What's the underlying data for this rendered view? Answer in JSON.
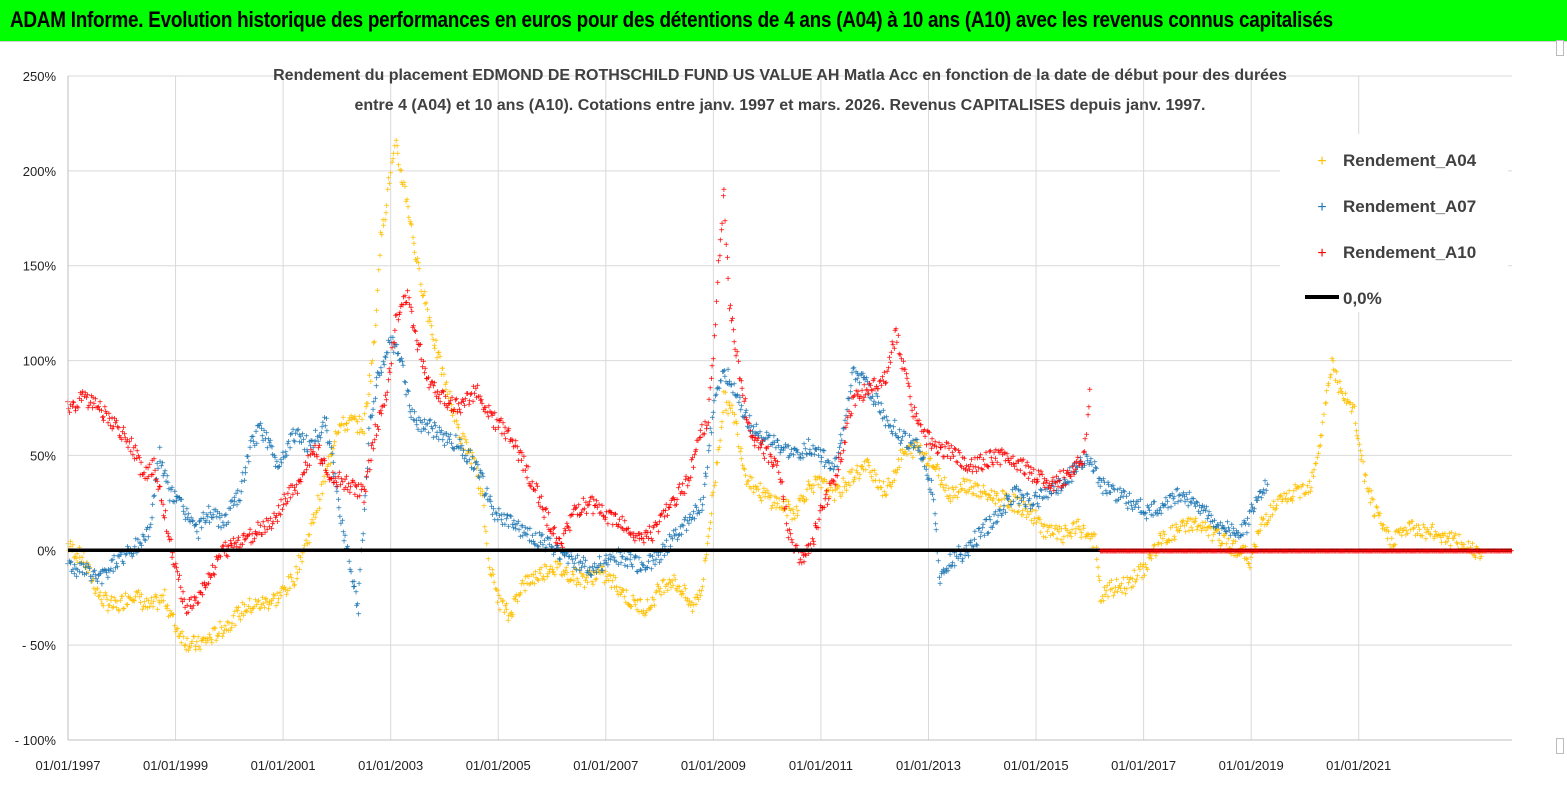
{
  "header": {
    "banner": "ADAM Informe. Evolution historique des performances en euros pour des détentions de 4 ans (A04) à 10 ans (A10) avec les revenus connus capitalisés",
    "banner_bg": "#00ff00"
  },
  "chart_data": {
    "type": "scatter",
    "title_lines": [
      "Rendement du placement EDMOND DE ROTHSCHILD FUND US VALUE AH Matla Acc en fonction de la date de début pour des durées",
      "entre 4 (A04) et 10 ans (A10). Cotations entre janv. 1997 et mars. 2026. Revenus CAPITALISES depuis janv. 1997."
    ],
    "xlabel": "",
    "ylabel": "",
    "x_range": [
      1997.0,
      2023.85
    ],
    "ylim": [
      -100,
      250
    ],
    "y_ticks": [
      250,
      200,
      150,
      100,
      50,
      0,
      -50,
      -100
    ],
    "y_tick_labels": [
      "250%",
      "200%",
      "150%",
      "100%",
      "50%",
      "0%",
      "- 50%",
      "- 100%"
    ],
    "x_ticks": [
      1997,
      1999,
      2001,
      2003,
      2005,
      2007,
      2009,
      2011,
      2013,
      2015,
      2017,
      2019,
      2021
    ],
    "x_tick_labels": [
      "01/01/1997",
      "01/01/1999",
      "01/01/2001",
      "01/01/2003",
      "01/01/2005",
      "01/01/2007",
      "01/01/2009",
      "01/01/2011",
      "01/01/2013",
      "01/01/2015",
      "01/01/2017",
      "01/01/2019",
      "01/01/2021"
    ],
    "grid": "horizontal and vertical",
    "legend_position": "top-right",
    "series": [
      {
        "name": "Rendement_A04",
        "color": "#ffc000",
        "marker": "+",
        "points": [
          [
            1997.0,
            3
          ],
          [
            1997.3,
            -5
          ],
          [
            1997.6,
            -25
          ],
          [
            1997.9,
            -30
          ],
          [
            1998.2,
            -22
          ],
          [
            1998.5,
            -30
          ],
          [
            1998.8,
            -25
          ],
          [
            1999.0,
            -40
          ],
          [
            1999.2,
            -48
          ],
          [
            1999.4,
            -50
          ],
          [
            1999.7,
            -45
          ],
          [
            2000.0,
            -38
          ],
          [
            2000.3,
            -30
          ],
          [
            2000.6,
            -28
          ],
          [
            2000.9,
            -25
          ],
          [
            2001.2,
            -15
          ],
          [
            2001.5,
            10
          ],
          [
            2001.8,
            40
          ],
          [
            2002.0,
            65
          ],
          [
            2002.3,
            68
          ],
          [
            2002.5,
            65
          ],
          [
            2002.7,
            110
          ],
          [
            2002.8,
            160
          ],
          [
            2003.0,
            200
          ],
          [
            2003.1,
            212
          ],
          [
            2003.3,
            185
          ],
          [
            2003.5,
            150
          ],
          [
            2003.7,
            125
          ],
          [
            2003.9,
            100
          ],
          [
            2004.1,
            80
          ],
          [
            2004.3,
            60
          ],
          [
            2004.5,
            50
          ],
          [
            2004.7,
            30
          ],
          [
            2004.85,
            -10
          ],
          [
            2005.0,
            -25
          ],
          [
            2005.2,
            -35
          ],
          [
            2005.4,
            -20
          ],
          [
            2005.6,
            -15
          ],
          [
            2005.8,
            -12
          ],
          [
            2006.0,
            -8
          ],
          [
            2006.3,
            -12
          ],
          [
            2006.6,
            -15
          ],
          [
            2006.9,
            -12
          ],
          [
            2007.2,
            -18
          ],
          [
            2007.5,
            -28
          ],
          [
            2007.8,
            -30
          ],
          [
            2008.0,
            -20
          ],
          [
            2008.2,
            -15
          ],
          [
            2008.4,
            -20
          ],
          [
            2008.6,
            -30
          ],
          [
            2008.8,
            -18
          ],
          [
            2009.0,
            30
          ],
          [
            2009.2,
            80
          ],
          [
            2009.4,
            70
          ],
          [
            2009.6,
            40
          ],
          [
            2009.9,
            30
          ],
          [
            2010.2,
            25
          ],
          [
            2010.5,
            20
          ],
          [
            2010.8,
            35
          ],
          [
            2011.0,
            35
          ],
          [
            2011.3,
            30
          ],
          [
            2011.6,
            40
          ],
          [
            2011.9,
            45
          ],
          [
            2012.2,
            30
          ],
          [
            2012.5,
            50
          ],
          [
            2012.8,
            55
          ],
          [
            2013.1,
            45
          ],
          [
            2013.4,
            30
          ],
          [
            2013.7,
            35
          ],
          [
            2014.0,
            30
          ],
          [
            2014.3,
            28
          ],
          [
            2014.6,
            25
          ],
          [
            2014.9,
            20
          ],
          [
            2015.2,
            10
          ],
          [
            2015.5,
            8
          ],
          [
            2015.8,
            12
          ],
          [
            2016.1,
            5
          ],
          [
            2016.2,
            -25
          ],
          [
            2016.4,
            -20
          ],
          [
            2016.7,
            -18
          ],
          [
            2017.0,
            -10
          ],
          [
            2017.3,
            5
          ],
          [
            2017.6,
            10
          ],
          [
            2017.9,
            15
          ],
          [
            2018.2,
            10
          ],
          [
            2018.5,
            5
          ],
          [
            2018.8,
            0
          ],
          [
            2019.0,
            -5
          ],
          [
            2019.2,
            15
          ],
          [
            2019.5,
            25
          ],
          [
            2019.8,
            30
          ],
          [
            2020.1,
            35
          ],
          [
            2020.3,
            60
          ],
          [
            2020.5,
            100
          ],
          [
            2020.7,
            80
          ],
          [
            2020.9,
            75
          ],
          [
            2021.1,
            40
          ],
          [
            2021.3,
            20
          ],
          [
            2021.6,
            5
          ],
          [
            2021.8,
            10
          ],
          [
            2022.0,
            12
          ],
          [
            2022.3,
            10
          ],
          [
            2022.6,
            8
          ],
          [
            2022.8,
            5
          ],
          [
            2023.0,
            2
          ],
          [
            2023.3,
            0
          ]
        ]
      },
      {
        "name": "Rendement_A07",
        "color": "#1f77b4",
        "marker": "+",
        "points": [
          [
            1997.0,
            -8
          ],
          [
            1997.3,
            -10
          ],
          [
            1997.6,
            -15
          ],
          [
            1997.9,
            -5
          ],
          [
            1998.2,
            0
          ],
          [
            1998.5,
            10
          ],
          [
            1998.7,
            50
          ],
          [
            1998.9,
            30
          ],
          [
            1999.1,
            25
          ],
          [
            1999.4,
            10
          ],
          [
            1999.6,
            20
          ],
          [
            1999.9,
            15
          ],
          [
            2000.2,
            30
          ],
          [
            2000.4,
            55
          ],
          [
            2000.6,
            65
          ],
          [
            2000.9,
            45
          ],
          [
            2001.2,
            62
          ],
          [
            2001.5,
            55
          ],
          [
            2001.8,
            68
          ],
          [
            2002.0,
            30
          ],
          [
            2002.1,
            15
          ],
          [
            2002.3,
            -15
          ],
          [
            2002.4,
            -30
          ],
          [
            2002.6,
            65
          ],
          [
            2002.8,
            95
          ],
          [
            2003.0,
            110
          ],
          [
            2003.2,
            100
          ],
          [
            2003.4,
            70
          ],
          [
            2003.7,
            65
          ],
          [
            2004.0,
            60
          ],
          [
            2004.3,
            55
          ],
          [
            2004.6,
            45
          ],
          [
            2004.9,
            20
          ],
          [
            2005.2,
            15
          ],
          [
            2005.5,
            10
          ],
          [
            2005.8,
            5
          ],
          [
            2006.1,
            0
          ],
          [
            2006.4,
            -5
          ],
          [
            2006.7,
            -10
          ],
          [
            2007.0,
            -5
          ],
          [
            2007.3,
            -3
          ],
          [
            2007.6,
            -8
          ],
          [
            2007.9,
            -5
          ],
          [
            2008.2,
            5
          ],
          [
            2008.5,
            15
          ],
          [
            2008.8,
            25
          ],
          [
            2009.0,
            75
          ],
          [
            2009.2,
            95
          ],
          [
            2009.4,
            85
          ],
          [
            2009.6,
            70
          ],
          [
            2009.9,
            60
          ],
          [
            2010.2,
            55
          ],
          [
            2010.5,
            50
          ],
          [
            2010.8,
            55
          ],
          [
            2011.0,
            50
          ],
          [
            2011.3,
            45
          ],
          [
            2011.6,
            95
          ],
          [
            2011.9,
            85
          ],
          [
            2012.2,
            70
          ],
          [
            2012.5,
            60
          ],
          [
            2012.8,
            55
          ],
          [
            2013.1,
            30
          ],
          [
            2013.2,
            -15
          ],
          [
            2013.4,
            -5
          ],
          [
            2013.7,
            0
          ],
          [
            2014.0,
            10
          ],
          [
            2014.3,
            20
          ],
          [
            2014.6,
            30
          ],
          [
            2014.9,
            25
          ],
          [
            2015.2,
            30
          ],
          [
            2015.5,
            35
          ],
          [
            2015.8,
            45
          ],
          [
            2016.0,
            50
          ],
          [
            2016.2,
            35
          ],
          [
            2016.5,
            30
          ],
          [
            2016.8,
            25
          ],
          [
            2017.1,
            20
          ],
          [
            2017.4,
            25
          ],
          [
            2017.7,
            30
          ],
          [
            2018.0,
            25
          ],
          [
            2018.3,
            15
          ],
          [
            2018.6,
            10
          ],
          [
            2018.9,
            12
          ],
          [
            2019.1,
            28
          ],
          [
            2019.3,
            35
          ]
        ]
      },
      {
        "name": "Rendement_A10",
        "color": "#ff0000",
        "marker": "+",
        "points": [
          [
            1997.0,
            75
          ],
          [
            1997.3,
            80
          ],
          [
            1997.6,
            75
          ],
          [
            1997.9,
            65
          ],
          [
            1998.2,
            55
          ],
          [
            1998.4,
            40
          ],
          [
            1998.6,
            45
          ],
          [
            1998.8,
            20
          ],
          [
            1999.0,
            -10
          ],
          [
            1999.2,
            -30
          ],
          [
            1999.4,
            -25
          ],
          [
            1999.6,
            -15
          ],
          [
            1999.9,
            0
          ],
          [
            2000.2,
            5
          ],
          [
            2000.5,
            10
          ],
          [
            2000.8,
            15
          ],
          [
            2001.0,
            25
          ],
          [
            2001.3,
            35
          ],
          [
            2001.6,
            55
          ],
          [
            2001.9,
            40
          ],
          [
            2002.2,
            35
          ],
          [
            2002.5,
            30
          ],
          [
            2002.7,
            60
          ],
          [
            2002.9,
            80
          ],
          [
            2003.1,
            120
          ],
          [
            2003.3,
            135
          ],
          [
            2003.5,
            110
          ],
          [
            2003.7,
            90
          ],
          [
            2004.0,
            80
          ],
          [
            2004.3,
            75
          ],
          [
            2004.6,
            85
          ],
          [
            2004.9,
            70
          ],
          [
            2005.2,
            60
          ],
          [
            2005.5,
            45
          ],
          [
            2005.8,
            25
          ],
          [
            2006.0,
            10
          ],
          [
            2006.2,
            5
          ],
          [
            2006.4,
            20
          ],
          [
            2006.7,
            25
          ],
          [
            2007.0,
            18
          ],
          [
            2007.3,
            15
          ],
          [
            2007.6,
            5
          ],
          [
            2007.9,
            10
          ],
          [
            2008.2,
            25
          ],
          [
            2008.5,
            35
          ],
          [
            2008.7,
            55
          ],
          [
            2008.9,
            70
          ],
          [
            2009.0,
            100
          ],
          [
            2009.1,
            150
          ],
          [
            2009.2,
            190
          ],
          [
            2009.3,
            130
          ],
          [
            2009.5,
            90
          ],
          [
            2009.7,
            60
          ],
          [
            2009.9,
            55
          ],
          [
            2010.2,
            45
          ],
          [
            2010.4,
            10
          ],
          [
            2010.6,
            -5
          ],
          [
            2010.8,
            0
          ],
          [
            2011.0,
            20
          ],
          [
            2011.3,
            40
          ],
          [
            2011.6,
            80
          ],
          [
            2011.9,
            85
          ],
          [
            2012.2,
            90
          ],
          [
            2012.4,
            115
          ],
          [
            2012.7,
            75
          ],
          [
            2012.9,
            60
          ],
          [
            2013.2,
            55
          ],
          [
            2013.5,
            50
          ],
          [
            2013.8,
            45
          ],
          [
            2014.1,
            48
          ],
          [
            2014.4,
            50
          ],
          [
            2014.7,
            45
          ],
          [
            2015.0,
            40
          ],
          [
            2015.3,
            35
          ],
          [
            2015.6,
            40
          ],
          [
            2015.9,
            50
          ],
          [
            2016.0,
            85
          ]
        ]
      }
    ],
    "zero_run": {
      "series": "Rendement_A10",
      "from": 2016.2,
      "to": 2023.85,
      "value": 0
    },
    "reference_line": {
      "name": "0,0%",
      "value": 0,
      "color": "#000000"
    }
  }
}
